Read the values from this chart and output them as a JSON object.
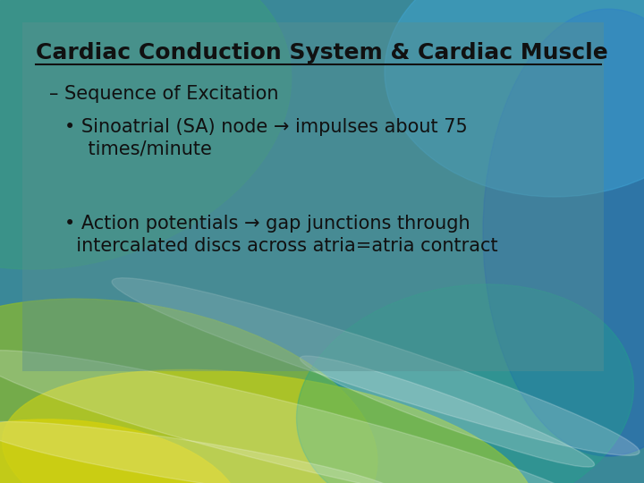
{
  "title": "Cardiac Conduction System & Cardiac Muscle",
  "line1": "– Sequence of Excitation",
  "line2_a": "• Sinoatrial (SA) node → impulses about 75",
  "line2_b": "    times/minute",
  "line3_a": "• Action potentials → gap junctions through",
  "line3_b": "  intercalated discs across atria=atria contract",
  "title_color": "#111111",
  "text_color": "#111111",
  "title_fontsize": 18,
  "body_fontsize": 15,
  "figsize": [
    7.2,
    5.4
  ],
  "dpi": 100
}
